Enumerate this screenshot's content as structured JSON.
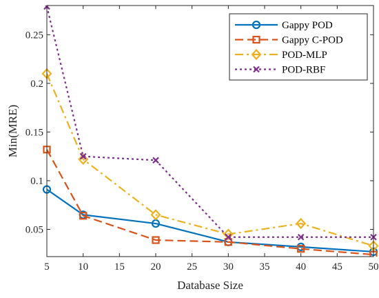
{
  "chart_data": {
    "type": "line",
    "title": "",
    "xlabel": "Database Size",
    "ylabel": "Min(MRE)",
    "xlim": [
      5,
      50
    ],
    "ylim": [
      0.022,
      0.28
    ],
    "x": [
      5,
      10,
      20,
      30,
      40,
      50
    ],
    "xticks": [
      5,
      10,
      15,
      20,
      25,
      30,
      35,
      40,
      45,
      50
    ],
    "xtick_labels": [
      "5",
      "10",
      "15",
      "20",
      "25",
      "30",
      "35",
      "40",
      "45",
      "50"
    ],
    "yticks": [
      0.05,
      0.1,
      0.15,
      0.2,
      0.25
    ],
    "ytick_labels": [
      "0.05",
      "0.1",
      "0.15",
      "0.2",
      "0.25"
    ],
    "grid": false,
    "legend_position": "top-right",
    "series": [
      {
        "name": "Gappy POD",
        "values": [
          0.091,
          0.065,
          0.056,
          0.037,
          0.032,
          0.027
        ],
        "color": "#0072BD",
        "marker": "circle",
        "dash": "solid"
      },
      {
        "name": "Gappy C-POD",
        "values": [
          0.132,
          0.064,
          0.039,
          0.037,
          0.03,
          0.024
        ],
        "color": "#D95319",
        "marker": "square",
        "dash": "dashed"
      },
      {
        "name": "POD-MLP",
        "values": [
          0.21,
          0.122,
          0.065,
          0.045,
          0.056,
          0.033
        ],
        "color": "#EDB120",
        "marker": "diamond",
        "dash": "dashdot"
      },
      {
        "name": "POD-RBF",
        "values": [
          0.279,
          0.125,
          0.121,
          0.042,
          0.042,
          0.042
        ],
        "color": "#7E2F8E",
        "marker": "x",
        "dash": "dotted"
      }
    ]
  }
}
